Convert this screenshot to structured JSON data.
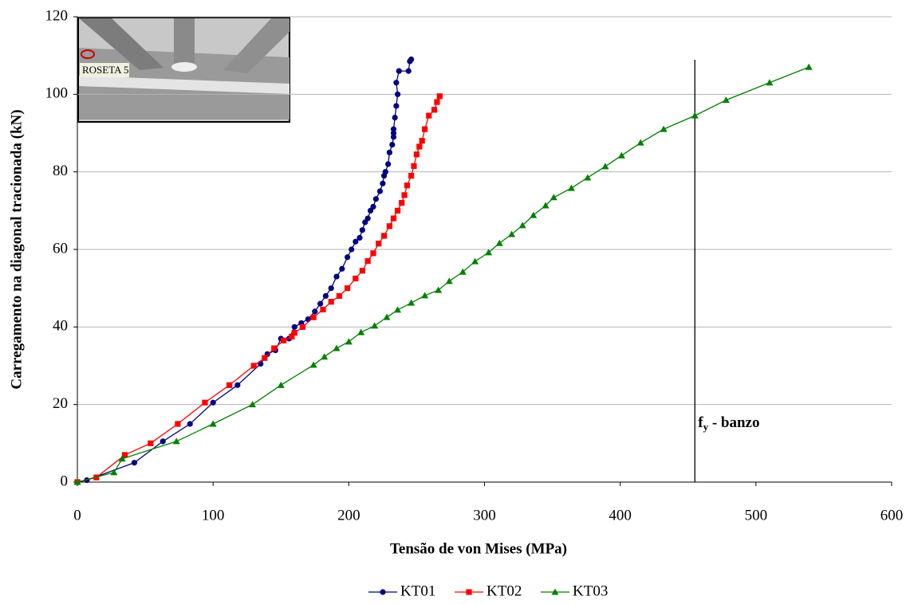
{
  "chart_data": {
    "type": "line",
    "y_label": "Carregamento na diagonal tracionada (kN)",
    "x_label": "Tensão de von Mises (MPa)",
    "inset_label": "ROSETA 5",
    "xlim": [
      0,
      600
    ],
    "xticks": [
      0,
      100,
      200,
      300,
      400,
      500,
      600
    ],
    "ylim": [
      0,
      120
    ],
    "yticks": [
      0,
      20,
      40,
      60,
      80,
      100,
      120
    ],
    "grid": true,
    "legend": "bottom",
    "reference_line": {
      "x": 455,
      "label_main": "f",
      "label_sub": "y",
      "label_rest": " - banzo"
    },
    "series": [
      {
        "name": "KT01",
        "color": "#000080",
        "marker": "circle",
        "x": [
          0,
          7,
          42,
          63,
          83,
          100,
          118,
          135,
          140,
          146,
          150,
          156,
          160,
          165,
          170,
          175,
          179,
          183,
          187,
          191,
          195,
          199,
          202,
          205,
          208,
          210,
          212,
          214,
          216,
          218,
          220,
          223,
          225,
          226,
          227,
          229,
          230,
          232,
          233,
          233,
          233,
          234,
          235,
          236,
          235,
          237,
          244,
          245,
          246
        ],
        "y": [
          0,
          0.5,
          5,
          10.5,
          15,
          20.5,
          25,
          30.5,
          33,
          34,
          37,
          37,
          40,
          41,
          42,
          44,
          46,
          48,
          50,
          53,
          55,
          58,
          60,
          62,
          63,
          65,
          67,
          68,
          70,
          71,
          73,
          75,
          77,
          79,
          80,
          82,
          85,
          87,
          89,
          90,
          91,
          94,
          97,
          100,
          103,
          106,
          106,
          108.5,
          109
        ]
      },
      {
        "name": "KT02",
        "color": "#ff0000",
        "marker": "square",
        "x": [
          0,
          14,
          35,
          54,
          74,
          94,
          112,
          130,
          138,
          145,
          152,
          158,
          160,
          166,
          174,
          181,
          187,
          193,
          199,
          205,
          210,
          214,
          218,
          222,
          226,
          230,
          233,
          236,
          239,
          241,
          243,
          246,
          248,
          250,
          252,
          254,
          256,
          259,
          263,
          265,
          267
        ],
        "y": [
          0,
          1.2,
          7,
          10,
          15,
          20.5,
          25,
          30,
          32,
          34.5,
          36.5,
          37.5,
          38.5,
          40,
          42.5,
          44.5,
          46.5,
          48,
          50,
          52.5,
          54.5,
          57,
          59,
          61.5,
          63.5,
          66,
          68,
          70,
          72,
          74,
          76.5,
          79,
          81.5,
          84.5,
          86.5,
          88,
          91,
          94.5,
          96,
          98,
          99.5
        ]
      },
      {
        "name": "KT03",
        "color": "#008000",
        "marker": "triangle",
        "x": [
          0,
          27,
          33,
          73,
          100,
          129,
          150,
          174,
          182,
          191,
          200,
          209,
          219,
          228,
          236,
          246,
          256,
          266,
          274,
          284,
          293,
          303,
          311,
          320,
          328,
          336,
          345,
          351,
          364,
          376,
          389,
          401,
          415,
          432,
          455,
          478,
          510,
          539
        ],
        "y": [
          0,
          2.5,
          6,
          10.5,
          15,
          20,
          25,
          30.2,
          32.3,
          34.5,
          36.2,
          38.6,
          40.3,
          42.5,
          44.4,
          46.2,
          48.1,
          49.5,
          51.8,
          54.2,
          56.9,
          59.2,
          61.6,
          63.9,
          66.2,
          68.8,
          71.3,
          73.4,
          75.8,
          78.5,
          81.4,
          84.2,
          87.5,
          91,
          94.5,
          98.5,
          103,
          107
        ]
      }
    ]
  }
}
